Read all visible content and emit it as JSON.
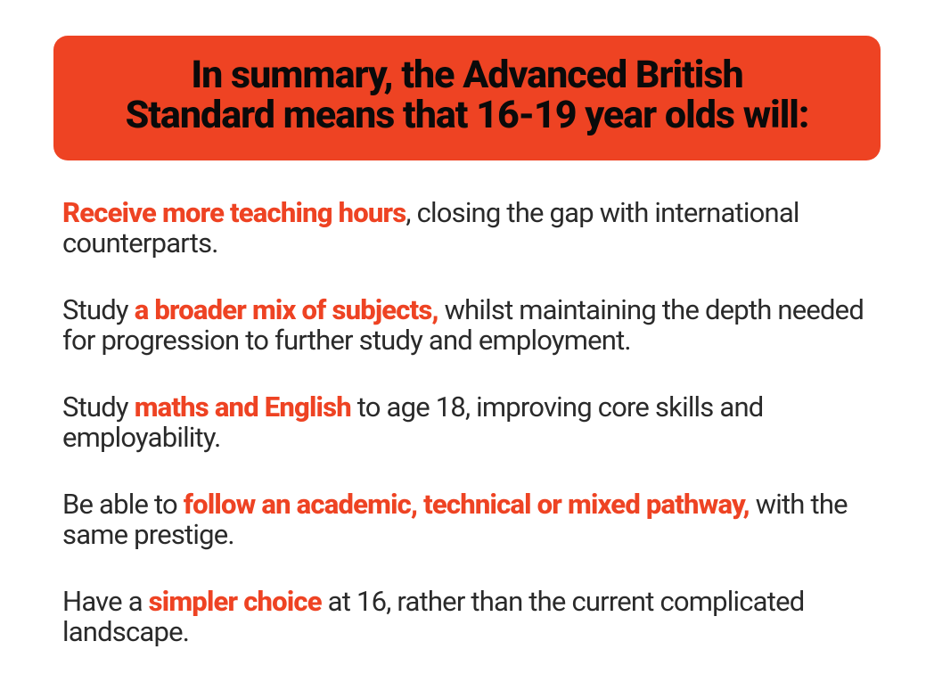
{
  "colors": {
    "accent": "#ee4323",
    "text_dark": "#0a0a0a",
    "text_body": "#2a2a2a",
    "background": "#ffffff"
  },
  "typography": {
    "header_fontsize": 43,
    "header_weight": 800,
    "body_fontsize": 31,
    "body_weight": 400,
    "highlight_weight": 800
  },
  "header": {
    "line1": "In summary, the Advanced British",
    "line2": "Standard means that 16-19 year olds will:"
  },
  "bullets": [
    {
      "pre": "",
      "highlight": "Receive more teaching hours",
      "post": ", closing the gap with international counterparts."
    },
    {
      "pre": "Study ",
      "highlight": "a broader mix of subjects,",
      "post": " whilst maintaining the depth needed for progression to further study and employment."
    },
    {
      "pre": "Study ",
      "highlight": "maths and English",
      "post": " to age 18, improving core skills and employability."
    },
    {
      "pre": "Be able to ",
      "highlight": "follow an academic, technical or mixed pathway,",
      "post": "  with the same prestige."
    },
    {
      "pre": "Have a ",
      "highlight": "simpler choice",
      "post": " at 16, rather than the current complicated landscape."
    }
  ]
}
